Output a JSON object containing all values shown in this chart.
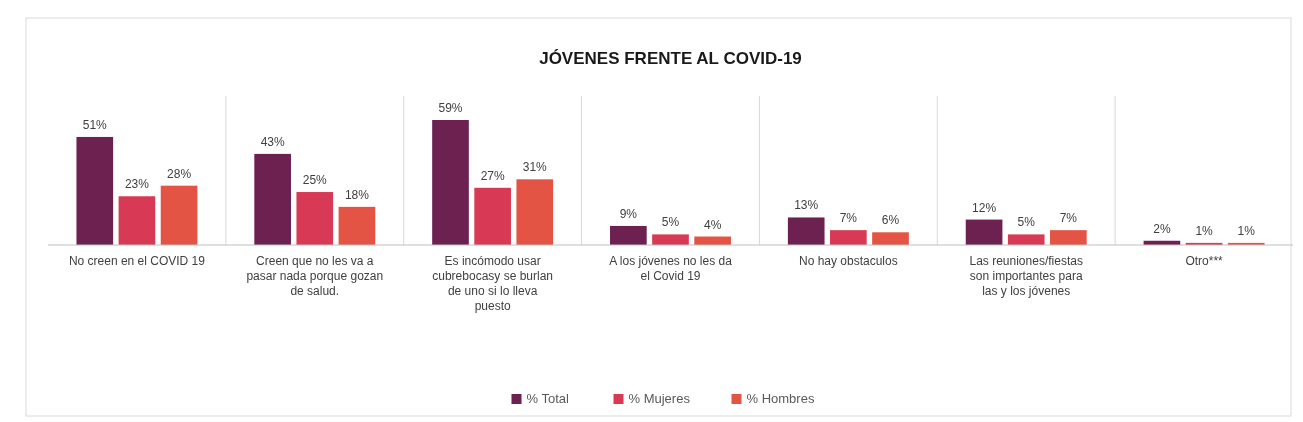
{
  "chart_data": {
    "type": "bar",
    "title": "JÓVENES FRENTE AL COVID-19",
    "categories": [
      "No creen en el COVID 19",
      "Creen que no les va a pasar nada porque gozan de salud.",
      "Es incómodo usar cubrebocasy se burlan de uno si lo lleva puesto",
      "A los jóvenes no les da el Covid 19",
      "No hay obstaculos",
      "Las reuniones/fiestas son importantes para las y los jóvenes",
      "Otro***"
    ],
    "series": [
      {
        "name": "% Total",
        "color": "#6d2150",
        "values": [
          51,
          43,
          59,
          9,
          13,
          12,
          2
        ],
        "value_labels": [
          "51%",
          "43%",
          "59%",
          "9%",
          "13%",
          "12%",
          "2%"
        ]
      },
      {
        "name": "% Mujeres",
        "color": "#d83a55",
        "values": [
          23,
          25,
          27,
          5,
          7,
          5,
          1
        ],
        "value_labels": [
          "23%",
          "25%",
          "27%",
          "5%",
          "7%",
          "5%",
          "1%"
        ]
      },
      {
        "name": "% Hombres",
        "color": "#e35444",
        "values": [
          28,
          18,
          31,
          4,
          6,
          7,
          1
        ],
        "value_labels": [
          "28%",
          "18%",
          "31%",
          "4%",
          "6%",
          "7%",
          "1%"
        ]
      }
    ],
    "legend": "bottom",
    "grid": "x"
  }
}
